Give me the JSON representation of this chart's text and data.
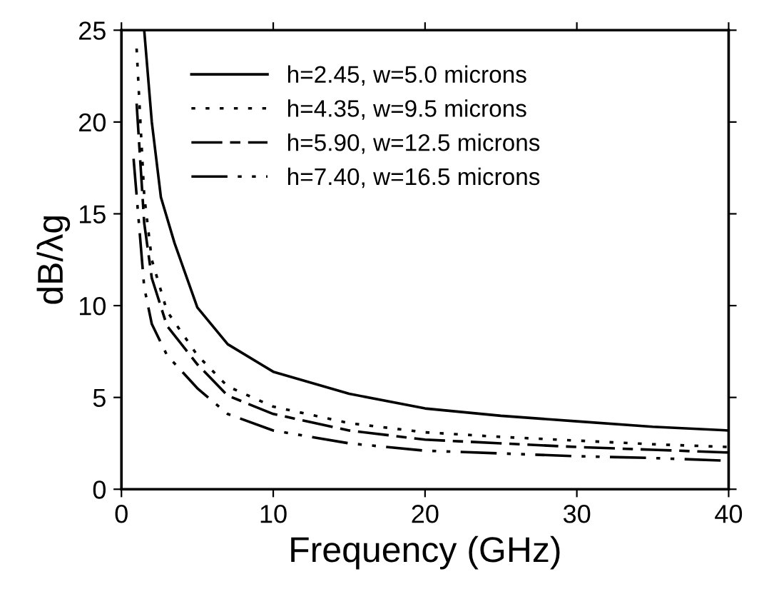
{
  "chart_data": {
    "type": "line",
    "xlabel": "Frequency (GHz)",
    "ylabel": "dB/λg",
    "xlim": [
      0,
      40
    ],
    "ylim": [
      0,
      25
    ],
    "xticks": [
      0,
      10,
      20,
      30,
      40
    ],
    "yticks": [
      0,
      5,
      10,
      15,
      20,
      25
    ],
    "grid": false,
    "legend": "top left",
    "marker": "none",
    "series": [
      {
        "name": "h=2.45, w=5.0 microns",
        "color": "#000000",
        "line_style": "solid",
        "x": [
          1.5,
          2,
          2.6,
          3.5,
          5,
          7,
          10,
          15,
          20,
          25,
          30,
          35,
          40
        ],
        "values": [
          25,
          20,
          15.9,
          13.4,
          9.9,
          7.9,
          6.4,
          5.2,
          4.4,
          4.0,
          3.7,
          3.4,
          3.2
        ]
      },
      {
        "name": "h=4.35, w=9.5 microns",
        "color": "#000000",
        "line_style": "dotted",
        "x": [
          1.0,
          1.5,
          2,
          3,
          5,
          7,
          10,
          15,
          20,
          25,
          30,
          35,
          40
        ],
        "values": [
          24,
          16,
          12.5,
          9.7,
          7.3,
          5.6,
          4.5,
          3.6,
          3.1,
          2.85,
          2.65,
          2.45,
          2.3
        ]
      },
      {
        "name": "h=5.90, w=12.5 microns",
        "color": "#000000",
        "line_style": "dashed",
        "x": [
          1.0,
          1.5,
          2,
          3,
          5,
          7,
          10,
          15,
          20,
          25,
          30,
          35,
          40
        ],
        "values": [
          21,
          14.5,
          11.5,
          8.9,
          6.8,
          5.1,
          4.1,
          3.2,
          2.7,
          2.5,
          2.3,
          2.15,
          2.0
        ]
      },
      {
        "name": "h=7.40, w=16.5 microns",
        "color": "#000000",
        "line_style": "dashdotdot",
        "x": [
          0.8,
          1.5,
          2,
          3,
          5,
          7,
          10,
          15,
          20,
          25,
          30,
          35,
          40
        ],
        "values": [
          18,
          11,
          9,
          7.3,
          5.5,
          4.1,
          3.2,
          2.5,
          2.1,
          1.95,
          1.8,
          1.7,
          1.55
        ]
      }
    ]
  }
}
